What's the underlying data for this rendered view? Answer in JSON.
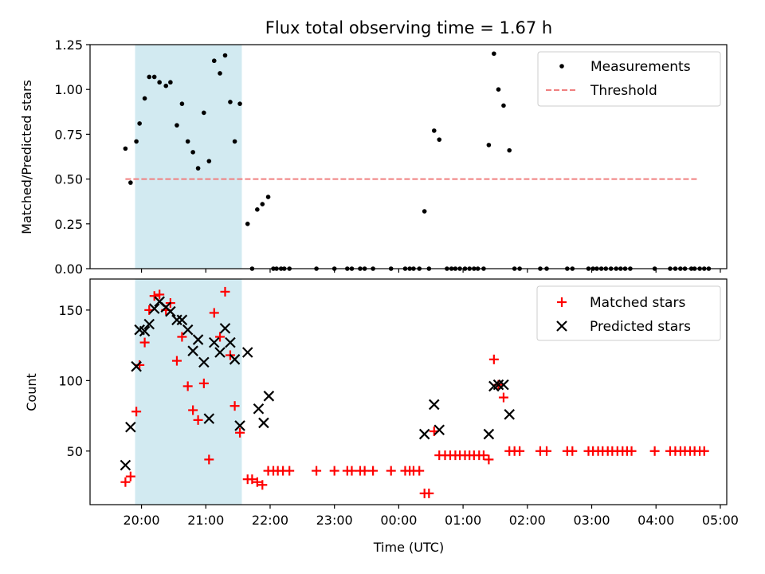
{
  "chart_data": [
    {
      "type": "scatter",
      "title": "Flux total observing time = 1.67 h",
      "xlabel": "",
      "ylabel": "Matched/Predicted stars",
      "ylim": [
        0,
        1.25
      ],
      "yticks": [
        "0.00",
        "0.25",
        "0.50",
        "0.75",
        "1.00",
        "1.25"
      ],
      "highlight_span": {
        "x_start": 19.9,
        "x_end": 21.56,
        "color": "#add8e6"
      },
      "legend": {
        "position": "top-right",
        "entries": [
          "Measurements",
          "Threshold"
        ]
      },
      "series": [
        {
          "name": "Measurements",
          "marker": "dot",
          "color": "#000000",
          "points": [
            [
              19.75,
              0.67
            ],
            [
              19.83,
              0.48
            ],
            [
              19.92,
              0.71
            ],
            [
              19.97,
              0.81
            ],
            [
              20.05,
              0.95
            ],
            [
              20.12,
              1.07
            ],
            [
              20.2,
              1.07
            ],
            [
              20.28,
              1.04
            ],
            [
              20.38,
              1.02
            ],
            [
              20.45,
              1.04
            ],
            [
              20.55,
              0.8
            ],
            [
              20.63,
              0.92
            ],
            [
              20.72,
              0.71
            ],
            [
              20.8,
              0.65
            ],
            [
              20.88,
              0.56
            ],
            [
              20.97,
              0.87
            ],
            [
              21.05,
              0.6
            ],
            [
              21.13,
              1.16
            ],
            [
              21.22,
              1.09
            ],
            [
              21.3,
              1.19
            ],
            [
              21.38,
              0.93
            ],
            [
              21.45,
              0.71
            ],
            [
              21.53,
              0.92
            ],
            [
              21.65,
              0.25
            ],
            [
              21.72,
              0
            ],
            [
              21.8,
              0.33
            ],
            [
              21.88,
              0.36
            ],
            [
              21.97,
              0.4
            ],
            [
              22.05,
              0
            ],
            [
              22.1,
              0
            ],
            [
              22.17,
              0
            ],
            [
              22.22,
              0
            ],
            [
              22.3,
              0
            ],
            [
              22.72,
              0
            ],
            [
              23.0,
              0
            ],
            [
              23.2,
              0
            ],
            [
              23.27,
              0
            ],
            [
              23.4,
              0
            ],
            [
              23.47,
              0
            ],
            [
              23.6,
              0
            ],
            [
              23.88,
              0
            ],
            [
              24.1,
              0
            ],
            [
              24.17,
              0
            ],
            [
              24.23,
              0
            ],
            [
              24.32,
              0
            ],
            [
              24.4,
              0.32
            ],
            [
              24.47,
              0
            ],
            [
              24.55,
              0.77
            ],
            [
              24.63,
              0.72
            ],
            [
              24.75,
              0
            ],
            [
              24.82,
              0
            ],
            [
              24.88,
              0
            ],
            [
              24.95,
              0
            ],
            [
              25.03,
              0
            ],
            [
              25.1,
              0
            ],
            [
              25.17,
              0
            ],
            [
              25.23,
              0
            ],
            [
              25.32,
              0
            ],
            [
              25.4,
              0.69
            ],
            [
              25.48,
              1.2
            ],
            [
              25.55,
              1.0
            ],
            [
              25.63,
              0.91
            ],
            [
              25.72,
              0.66
            ],
            [
              25.8,
              0
            ],
            [
              25.88,
              0
            ],
            [
              26.2,
              0
            ],
            [
              26.3,
              0
            ],
            [
              26.62,
              0
            ],
            [
              26.7,
              0
            ],
            [
              26.95,
              0
            ],
            [
              27.02,
              0
            ],
            [
              27.08,
              0
            ],
            [
              27.15,
              0
            ],
            [
              27.22,
              0
            ],
            [
              27.3,
              0
            ],
            [
              27.38,
              0
            ],
            [
              27.45,
              0
            ],
            [
              27.52,
              0
            ],
            [
              27.6,
              0
            ],
            [
              27.98,
              0
            ],
            [
              28.22,
              0
            ],
            [
              28.3,
              0
            ],
            [
              28.38,
              0
            ],
            [
              28.45,
              0
            ],
            [
              28.55,
              0
            ],
            [
              28.6,
              0
            ],
            [
              28.68,
              0
            ],
            [
              28.75,
              0
            ],
            [
              28.82,
              0
            ]
          ]
        },
        {
          "name": "Threshold",
          "marker": "dashed-line",
          "color": "#f08080",
          "points": [
            [
              19.75,
              0.5
            ],
            [
              28.65,
              0.5
            ]
          ]
        }
      ]
    },
    {
      "type": "scatter",
      "title": "",
      "xlabel": "Time (UTC)",
      "ylabel": "Count",
      "ylim": [
        12,
        172
      ],
      "yticks": [
        "50",
        "100",
        "150"
      ],
      "xlim": [
        19.2,
        29.1
      ],
      "xticks": [
        "20:00",
        "21:00",
        "22:00",
        "23:00",
        "00:00",
        "01:00",
        "02:00",
        "03:00",
        "04:00",
        "05:00"
      ],
      "highlight_span": {
        "x_start": 19.9,
        "x_end": 21.56,
        "color": "#add8e6"
      },
      "legend": {
        "position": "top-right",
        "entries": [
          "Matched stars",
          "Predicted stars"
        ]
      },
      "series": [
        {
          "name": "Matched stars",
          "marker": "plus",
          "color": "#ff0000",
          "points": [
            [
              19.75,
              28
            ],
            [
              19.83,
              32
            ],
            [
              19.92,
              78
            ],
            [
              19.97,
              111
            ],
            [
              20.05,
              127
            ],
            [
              20.12,
              150
            ],
            [
              20.2,
              160
            ],
            [
              20.28,
              161
            ],
            [
              20.38,
              150
            ],
            [
              20.45,
              155
            ],
            [
              20.55,
              114
            ],
            [
              20.63,
              131
            ],
            [
              20.72,
              96
            ],
            [
              20.8,
              79
            ],
            [
              20.88,
              72
            ],
            [
              20.97,
              98
            ],
            [
              21.05,
              44
            ],
            [
              21.13,
              148
            ],
            [
              21.22,
              131
            ],
            [
              21.3,
              163
            ],
            [
              21.38,
              118
            ],
            [
              21.45,
              82
            ],
            [
              21.53,
              63
            ],
            [
              21.65,
              30
            ],
            [
              21.72,
              30
            ],
            [
              21.8,
              28
            ],
            [
              21.88,
              26
            ],
            [
              21.97,
              36
            ],
            [
              22.05,
              36
            ],
            [
              22.12,
              36
            ],
            [
              22.2,
              36
            ],
            [
              22.3,
              36
            ],
            [
              22.72,
              36
            ],
            [
              23.0,
              36
            ],
            [
              23.2,
              36
            ],
            [
              23.27,
              36
            ],
            [
              23.4,
              36
            ],
            [
              23.47,
              36
            ],
            [
              23.6,
              36
            ],
            [
              23.88,
              36
            ],
            [
              24.1,
              36
            ],
            [
              24.17,
              36
            ],
            [
              24.23,
              36
            ],
            [
              24.32,
              36
            ],
            [
              24.4,
              20
            ],
            [
              24.47,
              20
            ],
            [
              24.55,
              64
            ],
            [
              24.63,
              47
            ],
            [
              24.72,
              47
            ],
            [
              24.8,
              47
            ],
            [
              24.88,
              47
            ],
            [
              24.95,
              47
            ],
            [
              25.03,
              47
            ],
            [
              25.1,
              47
            ],
            [
              25.17,
              47
            ],
            [
              25.25,
              47
            ],
            [
              25.32,
              47
            ],
            [
              25.4,
              44
            ],
            [
              25.48,
              115
            ],
            [
              25.55,
              97
            ],
            [
              25.63,
              88
            ],
            [
              25.72,
              50
            ],
            [
              25.8,
              50
            ],
            [
              25.88,
              50
            ],
            [
              26.2,
              50
            ],
            [
              26.3,
              50
            ],
            [
              26.62,
              50
            ],
            [
              26.7,
              50
            ],
            [
              26.95,
              50
            ],
            [
              27.02,
              50
            ],
            [
              27.1,
              50
            ],
            [
              27.17,
              50
            ],
            [
              27.25,
              50
            ],
            [
              27.32,
              50
            ],
            [
              27.4,
              50
            ],
            [
              27.48,
              50
            ],
            [
              27.55,
              50
            ],
            [
              27.62,
              50
            ],
            [
              27.98,
              50
            ],
            [
              28.22,
              50
            ],
            [
              28.3,
              50
            ],
            [
              28.38,
              50
            ],
            [
              28.45,
              50
            ],
            [
              28.53,
              50
            ],
            [
              28.6,
              50
            ],
            [
              28.68,
              50
            ],
            [
              28.75,
              50
            ]
          ]
        },
        {
          "name": "Predicted stars",
          "marker": "x",
          "color": "#000000",
          "points": [
            [
              19.75,
              40
            ],
            [
              19.83,
              67
            ],
            [
              19.92,
              110
            ],
            [
              19.97,
              136
            ],
            [
              20.05,
              135
            ],
            [
              20.12,
              140
            ],
            [
              20.2,
              151
            ],
            [
              20.28,
              156
            ],
            [
              20.38,
              152
            ],
            [
              20.45,
              149
            ],
            [
              20.55,
              143
            ],
            [
              20.63,
              143
            ],
            [
              20.72,
              136
            ],
            [
              20.8,
              121
            ],
            [
              20.88,
              129
            ],
            [
              20.97,
              113
            ],
            [
              21.05,
              73
            ],
            [
              21.13,
              127
            ],
            [
              21.22,
              120
            ],
            [
              21.3,
              137
            ],
            [
              21.38,
              127
            ],
            [
              21.45,
              115
            ],
            [
              21.53,
              68
            ],
            [
              21.65,
              120
            ],
            [
              21.82,
              80
            ],
            [
              21.9,
              70
            ],
            [
              21.98,
              89
            ],
            [
              24.4,
              62
            ],
            [
              24.55,
              83
            ],
            [
              24.63,
              65
            ],
            [
              25.4,
              62
            ],
            [
              25.48,
              96
            ],
            [
              25.55,
              97
            ],
            [
              25.63,
              97
            ],
            [
              25.72,
              76
            ]
          ]
        }
      ]
    }
  ]
}
